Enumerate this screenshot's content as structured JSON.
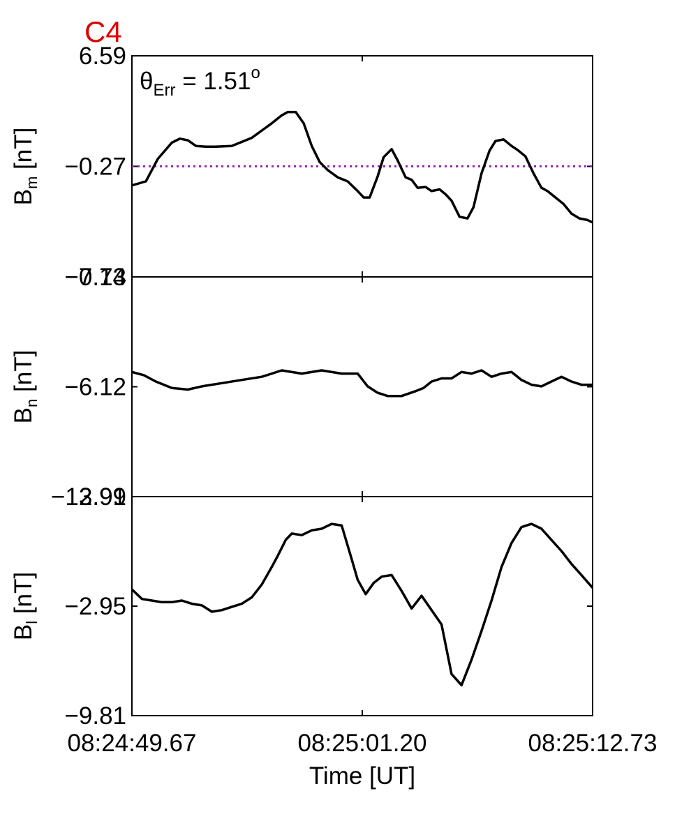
{
  "chart_data": {
    "type": "line",
    "panel_label": "C4",
    "panel_label_color": "#e00000",
    "annotation": {
      "symbol": "θ",
      "subscript": "Err",
      "text": " =  1.51",
      "superscript": "o"
    },
    "xlabel": "Time [UT]",
    "x_ticks": [
      "08:24:49.67",
      "08:25:01.20",
      "08:25:12.73"
    ],
    "x_range_seconds": [
      0,
      23.06
    ],
    "line_color": "#000000",
    "reference_line_color": "#a020c0",
    "panels": [
      {
        "name": "Bm",
        "ylabel_main": "B",
        "ylabel_sub": "m",
        "ylabel_unit": " [nT]",
        "y_ticks": [
          "6.59",
          "−0.27",
          "−7.13"
        ],
        "ylim": [
          -7.13,
          6.59
        ],
        "reference_y": -0.27,
        "t": [
          0,
          0.7,
          1.3,
          2,
          2.4,
          2.8,
          3.2,
          3.7,
          4.2,
          5,
          6,
          7,
          7.5,
          7.8,
          8.2,
          8.6,
          9,
          9.4,
          9.8,
          10.3,
          10.8,
          11.3,
          11.6,
          11.9,
          12.3,
          12.6,
          13,
          13.3,
          13.7,
          14,
          14.3,
          14.7,
          15,
          15.4,
          15.7,
          16,
          16.4,
          16.8,
          17.1,
          17.5,
          17.9,
          18.2,
          18.6,
          19,
          19.3,
          19.7,
          20.1,
          20.5,
          20.8,
          21.2,
          21.6,
          22,
          22.4,
          22.8,
          23.06
        ],
        "values": [
          -1.45,
          -1.2,
          0.2,
          1.2,
          1.45,
          1.35,
          1.0,
          0.95,
          0.95,
          1.0,
          1.5,
          2.4,
          2.9,
          3.1,
          3.1,
          2.4,
          1.0,
          0.0,
          -0.5,
          -0.95,
          -1.2,
          -1.8,
          -2.2,
          -2.2,
          -0.9,
          0.3,
          0.8,
          0.1,
          -0.95,
          -1.1,
          -1.6,
          -1.55,
          -1.8,
          -1.7,
          -2.0,
          -2.4,
          -3.4,
          -3.5,
          -2.8,
          -0.7,
          0.7,
          1.3,
          1.4,
          1.0,
          0.75,
          0.35,
          -0.7,
          -1.6,
          -1.8,
          -2.2,
          -2.6,
          -3.2,
          -3.5,
          -3.6,
          -3.75
        ]
      },
      {
        "name": "Bn",
        "ylabel_main": "B",
        "ylabel_sub": "n",
        "ylabel_unit": " [nT]",
        "y_ticks": [
          "0.74",
          "−6.12",
          "−12.99"
        ],
        "ylim": [
          -12.99,
          0.74
        ],
        "t": [
          0,
          0.6,
          1.2,
          2,
          2.8,
          3.5,
          4.5,
          5.5,
          6.5,
          7.5,
          8.5,
          9.5,
          10.5,
          11.3,
          11.8,
          12.3,
          12.8,
          13.5,
          14.2,
          14.6,
          15,
          15.5,
          16,
          16.5,
          17,
          17.5,
          18,
          18.5,
          19,
          19.5,
          20,
          20.5,
          21,
          21.5,
          22,
          22.5,
          23.06
        ],
        "values": [
          -5.2,
          -5.4,
          -5.8,
          -6.2,
          -6.3,
          -6.1,
          -5.9,
          -5.7,
          -5.5,
          -5.1,
          -5.3,
          -5.1,
          -5.3,
          -5.3,
          -6.1,
          -6.5,
          -6.7,
          -6.7,
          -6.4,
          -6.2,
          -5.8,
          -5.6,
          -5.6,
          -5.2,
          -5.3,
          -5.1,
          -5.5,
          -5.3,
          -5.2,
          -5.7,
          -6.0,
          -6.1,
          -5.8,
          -5.5,
          -5.8,
          -6.0,
          -6.0
        ]
      },
      {
        "name": "Bl",
        "ylabel_main": "B",
        "ylabel_sub": "l",
        "ylabel_unit": " [nT]",
        "y_ticks": [
          "3.91",
          "−2.95",
          "−9.81"
        ],
        "ylim": [
          -9.81,
          3.91
        ],
        "t": [
          0,
          0.5,
          1,
          1.5,
          2,
          2.5,
          3,
          3.5,
          4,
          4.5,
          5,
          5.5,
          6,
          6.5,
          7,
          7.3,
          7.7,
          8,
          8.5,
          9,
          9.5,
          10,
          10.5,
          11,
          11.3,
          11.7,
          12.1,
          12.5,
          13,
          13.5,
          14,
          14.5,
          15,
          15.5,
          16,
          16.5,
          17,
          17.5,
          18,
          18.5,
          19,
          19.5,
          20,
          20.5,
          21,
          21.5,
          22,
          22.5,
          23.06
        ],
        "values": [
          -1.9,
          -2.5,
          -2.6,
          -2.7,
          -2.7,
          -2.6,
          -2.8,
          -2.9,
          -3.3,
          -3.2,
          -3.0,
          -2.8,
          -2.4,
          -1.6,
          -0.5,
          0.2,
          1.2,
          1.6,
          1.5,
          1.8,
          1.9,
          2.2,
          2.1,
          0.0,
          -1.3,
          -2.2,
          -1.5,
          -1.1,
          -1.0,
          -2.0,
          -3.1,
          -2.3,
          -3.2,
          -4.1,
          -7.2,
          -7.9,
          -6.3,
          -4.5,
          -2.6,
          -0.5,
          1.0,
          2.0,
          2.2,
          1.9,
          1.2,
          0.5,
          -0.3,
          -1.0,
          -1.8
        ]
      }
    ]
  }
}
